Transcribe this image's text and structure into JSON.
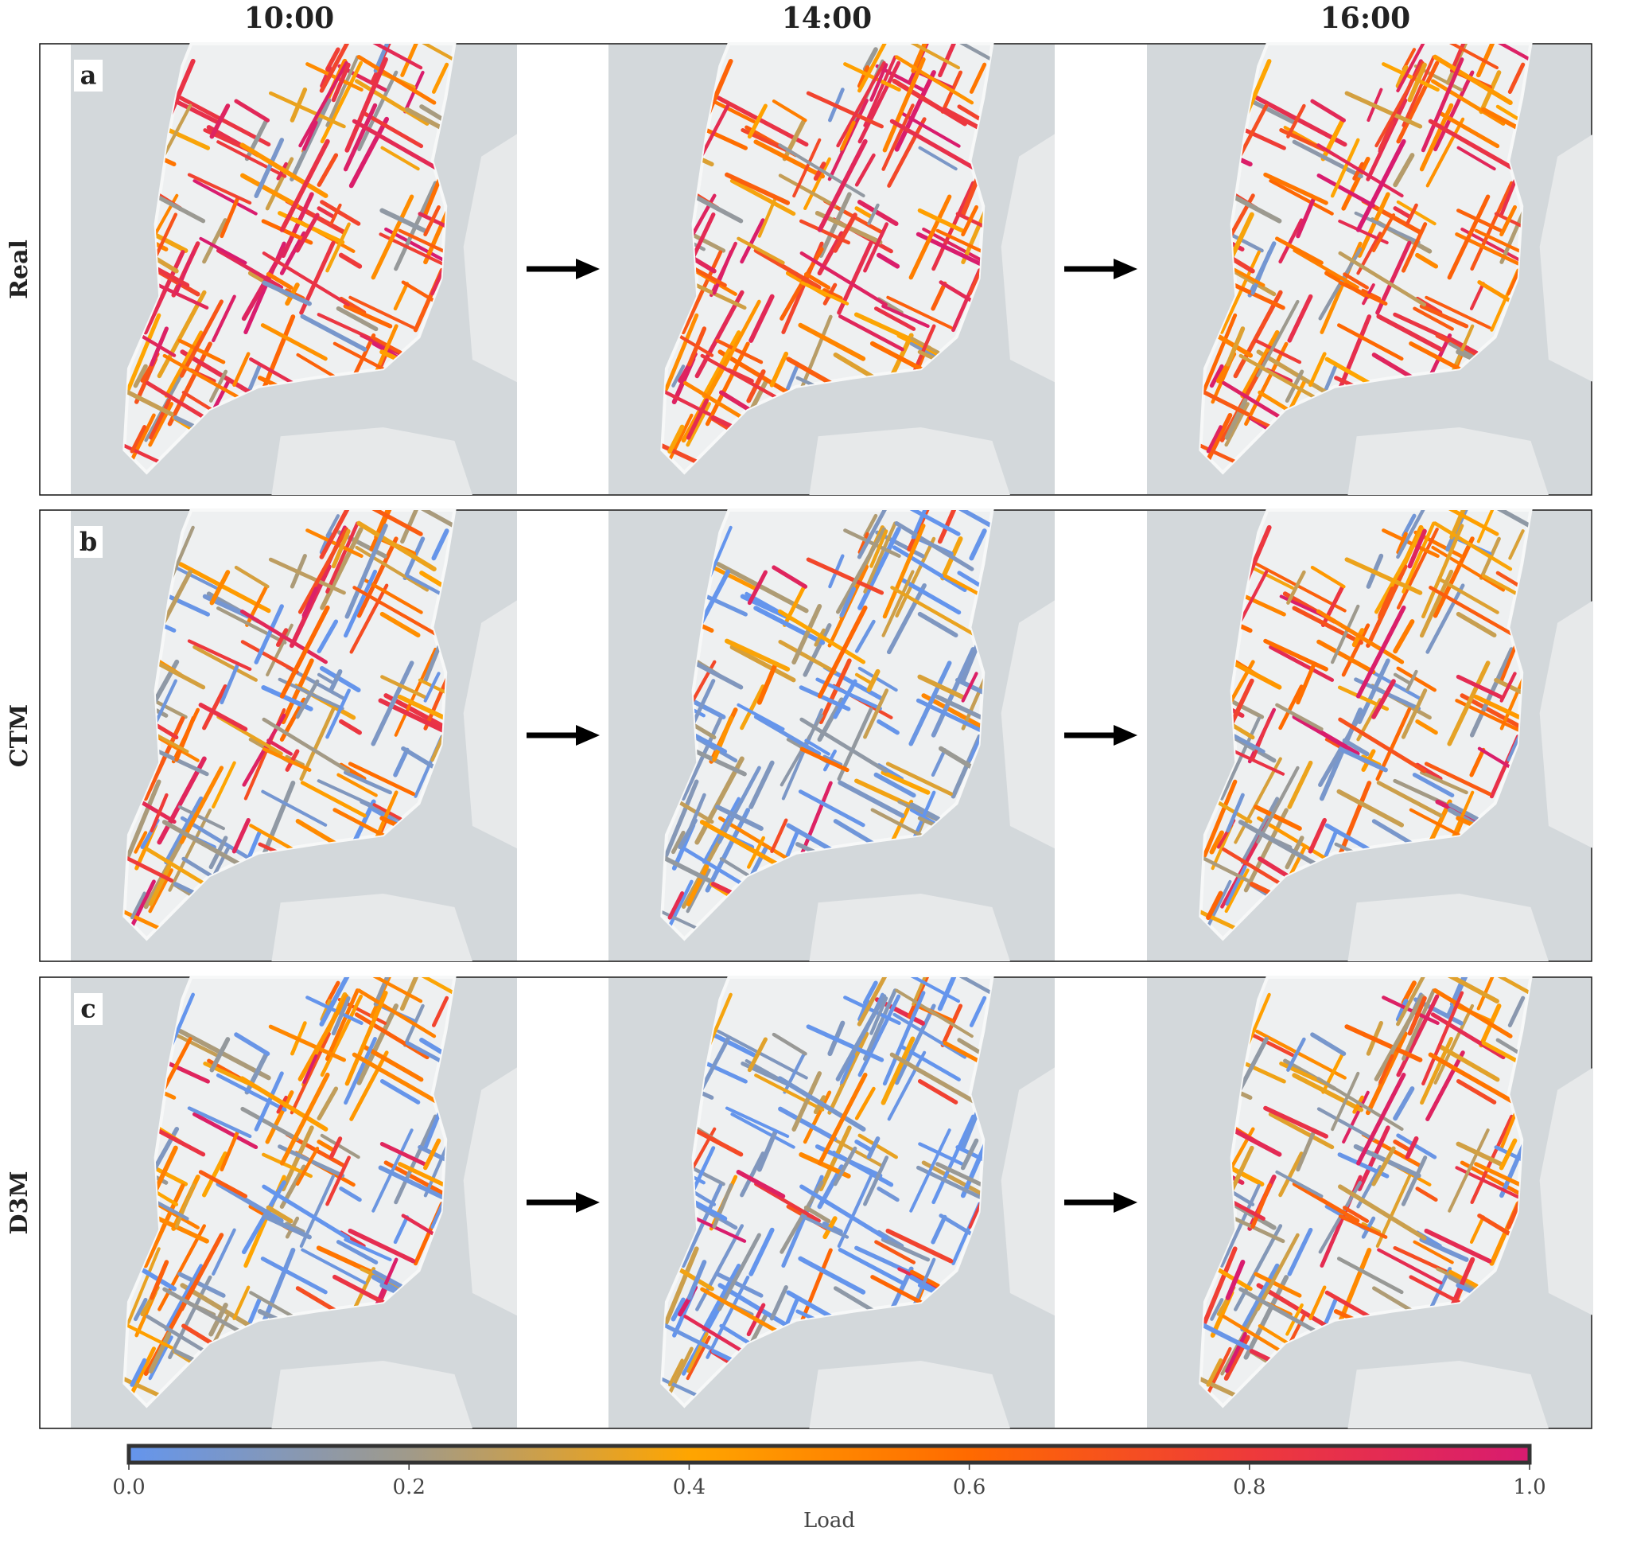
{
  "columns": [
    "10:00",
    "14:00",
    "16:00"
  ],
  "rows": [
    {
      "label": "Real",
      "panel": "a"
    },
    {
      "label": "CTM",
      "panel": "b"
    },
    {
      "label": "D3M",
      "panel": "c"
    }
  ],
  "colorbar": {
    "label": "Load",
    "lim": [
      0,
      1
    ],
    "ticks": [
      {
        "value": 0,
        "label": "0.0"
      },
      {
        "value": 0.2,
        "label": "0.2"
      },
      {
        "value": 0.4,
        "label": "0.4"
      },
      {
        "value": 0.6,
        "label": "0.6"
      },
      {
        "value": 0.8,
        "label": "0.8"
      },
      {
        "value": 1,
        "label": "1.0"
      }
    ],
    "colors": [
      "#6495ed",
      "#a09a8a",
      "#ffa500",
      "#ff6a00",
      "#ee3a3a",
      "#d81b70"
    ]
  }
}
